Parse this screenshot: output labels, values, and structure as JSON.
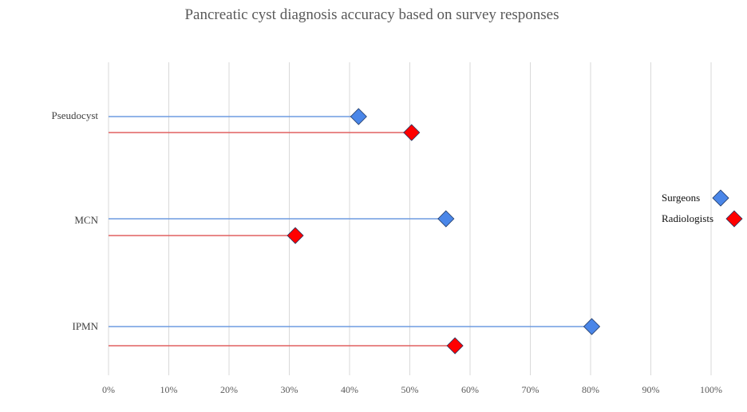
{
  "chart_data": {
    "type": "scatter",
    "title": "Pancreatic cyst diagnosis accuracy based on survey responses",
    "xlabel": "",
    "ylabel": "",
    "xlim": [
      0,
      100
    ],
    "x_ticks": [
      "0%",
      "10%",
      "20%",
      "30%",
      "40%",
      "50%",
      "60%",
      "70%",
      "80%",
      "90%",
      "100%"
    ],
    "categories": [
      "Pseudocyst",
      "MCN",
      "IPMN"
    ],
    "series": [
      {
        "name": "Surgeons",
        "color": "#4a86e8",
        "line_color": "#6f9be0",
        "values": [
          41.5,
          56,
          80.2
        ]
      },
      {
        "name": "Radiologists",
        "color": "#ff0000",
        "line_color": "#e06060",
        "values": [
          50.3,
          31,
          57.5
        ]
      }
    ],
    "grid": "vertical",
    "legend": "right",
    "marker": "diamond"
  }
}
